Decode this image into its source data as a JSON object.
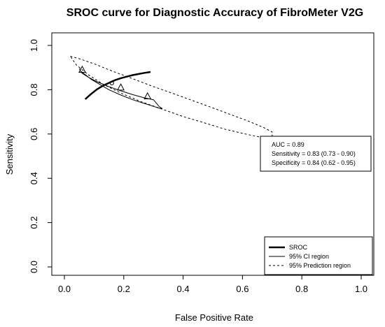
{
  "chart_data": {
    "type": "scatter",
    "title": "SROC curve for Diagnostic Accuracy of FibroMeter V2G",
    "xlabel": "False Positive Rate",
    "ylabel": "Sensitivity",
    "xlim": [
      0,
      1
    ],
    "ylim": [
      0,
      1
    ],
    "xticks": [
      "0.0",
      "0.2",
      "0.4",
      "0.6",
      "0.8",
      "1.0"
    ],
    "yticks": [
      "0.0",
      "0.2",
      "0.4",
      "0.6",
      "0.8",
      "1.0"
    ],
    "grid": false,
    "study_points": [
      {
        "x": 0.06,
        "y": 0.89
      },
      {
        "x": 0.19,
        "y": 0.81
      },
      {
        "x": 0.28,
        "y": 0.77
      }
    ],
    "summary_point": {
      "x": 0.16,
      "y": 0.83
    },
    "sroc_curve": {
      "x": [
        0.07,
        0.09,
        0.11,
        0.13,
        0.15,
        0.17,
        0.19,
        0.21,
        0.23,
        0.25,
        0.27,
        0.29
      ],
      "y": [
        0.757,
        0.781,
        0.802,
        0.818,
        0.831,
        0.843,
        0.852,
        0.859,
        0.866,
        0.871,
        0.876,
        0.88
      ]
    },
    "ci_region": {
      "x": [
        0.05,
        0.06,
        0.08,
        0.11,
        0.15,
        0.19,
        0.23,
        0.27,
        0.3,
        0.32,
        0.33,
        0.32,
        0.3,
        0.27,
        0.23,
        0.19,
        0.15,
        0.12,
        0.09,
        0.07,
        0.055,
        0.05
      ],
      "y": [
        0.895,
        0.874,
        0.857,
        0.836,
        0.814,
        0.795,
        0.778,
        0.763,
        0.755,
        0.723,
        0.715,
        0.716,
        0.725,
        0.738,
        0.755,
        0.776,
        0.8,
        0.823,
        0.847,
        0.868,
        0.884,
        0.895
      ]
    },
    "prediction_region": {
      "x": [
        0.02,
        0.05,
        0.1,
        0.16,
        0.23,
        0.3,
        0.37,
        0.44,
        0.5,
        0.56,
        0.62,
        0.67,
        0.7,
        0.7,
        0.67,
        0.61,
        0.54,
        0.47,
        0.4,
        0.33,
        0.26,
        0.19,
        0.13,
        0.08,
        0.04,
        0.02
      ],
      "y": [
        0.951,
        0.94,
        0.917,
        0.885,
        0.85,
        0.814,
        0.781,
        0.747,
        0.718,
        0.688,
        0.658,
        0.63,
        0.609,
        0.581,
        0.583,
        0.6,
        0.622,
        0.651,
        0.679,
        0.712,
        0.745,
        0.785,
        0.825,
        0.868,
        0.912,
        0.951
      ]
    },
    "stats_box": {
      "auc": "AUC = 0.89",
      "sensitivity": "Sensitivity = 0.83 (0.73 - 0.90)",
      "specificity": "Specificity = 0.84 (0.62 - 0.95)"
    },
    "legend": {
      "position": "bottom-right",
      "entries": [
        {
          "label": "SROC",
          "style": "thick-solid"
        },
        {
          "label": "95% CI region",
          "style": "thin-solid"
        },
        {
          "label": "95% Prediction region",
          "style": "dashed"
        }
      ]
    },
    "colors": {
      "line": "#000000",
      "background": "#ffffff"
    }
  }
}
